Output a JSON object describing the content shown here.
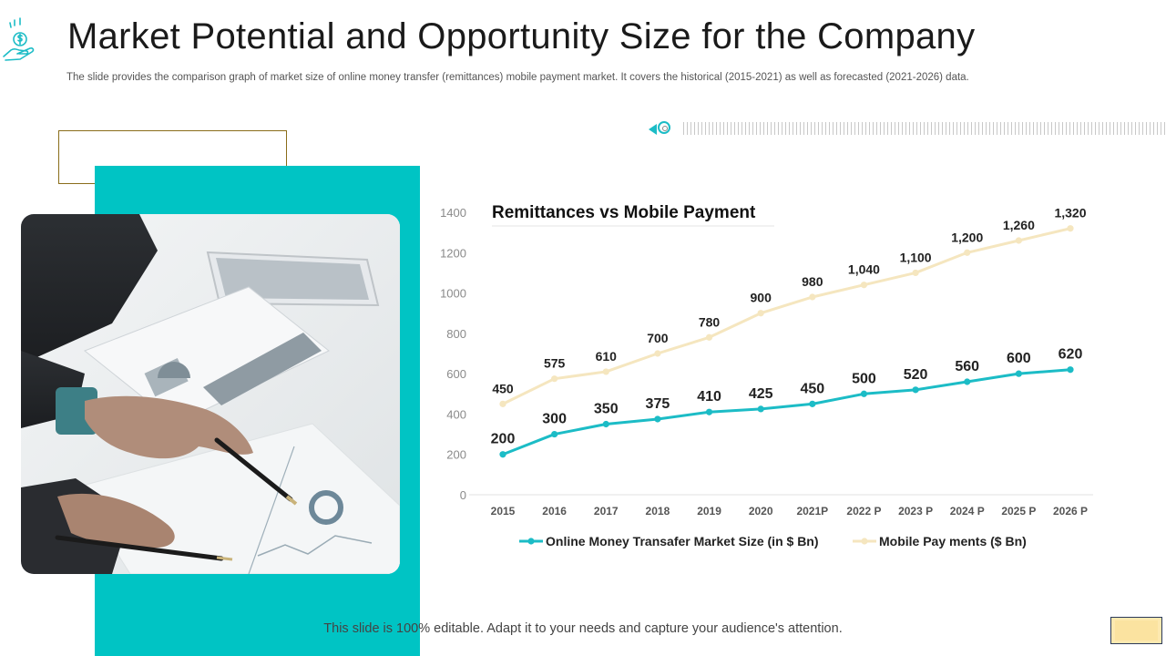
{
  "slide": {
    "title": "Market Potential and Opportunity Size for the Company",
    "subtitle": "The slide provides the comparison graph of market size of online money transfer (remittances) mobile payment market. It covers the historical (2015-2021) as well as forecasted (2021-2026) data.",
    "footer_note": "This slide is 100% editable. Adapt it to your needs and capture your audience's attention."
  },
  "icons": {
    "slide_icon": "hand-holding-money-icon",
    "prev_arrow": "triangle-left-icon",
    "ring": "target-ring-icon"
  },
  "colors": {
    "accent_teal": "#00c4c4",
    "series_online": "#1cbcc6",
    "series_mobile": "#f5e6bf",
    "footer_box": "#fde9b0"
  },
  "chart_data": {
    "type": "line",
    "title": "Remittances vs Mobile Payment",
    "categories": [
      "2015",
      "2016",
      "2017",
      "2018",
      "2019",
      "2020",
      "2021P",
      "2022 P",
      "2023 P",
      "2024 P",
      "2025 P",
      "2026 P"
    ],
    "series": [
      {
        "name": "Online Money Transafer Market Size (in $ Bn)",
        "values": [
          200,
          300,
          350,
          375,
          410,
          425,
          450,
          500,
          520,
          560,
          600,
          620
        ],
        "labels": [
          "200",
          "300",
          "350",
          "375",
          "410",
          "425",
          "450",
          "500",
          "520",
          "560",
          "600",
          "620"
        ],
        "color": "#1cbcc6"
      },
      {
        "name": "Mobile Pay ments ($ Bn)",
        "values": [
          450,
          575,
          610,
          700,
          780,
          900,
          980,
          1040,
          1100,
          1200,
          1260,
          1320
        ],
        "labels": [
          "450",
          "575",
          "610",
          "700",
          "780",
          "900",
          "980",
          "1,040",
          "1,100",
          "1,200",
          "1,260",
          "1,320"
        ],
        "color": "#f5e6bf"
      }
    ],
    "ylim": [
      0,
      1400
    ],
    "yticks": [
      "0",
      "200",
      "400",
      "600",
      "800",
      "1000",
      "1200",
      "1400"
    ],
    "grid": false,
    "legend": "bottom"
  }
}
